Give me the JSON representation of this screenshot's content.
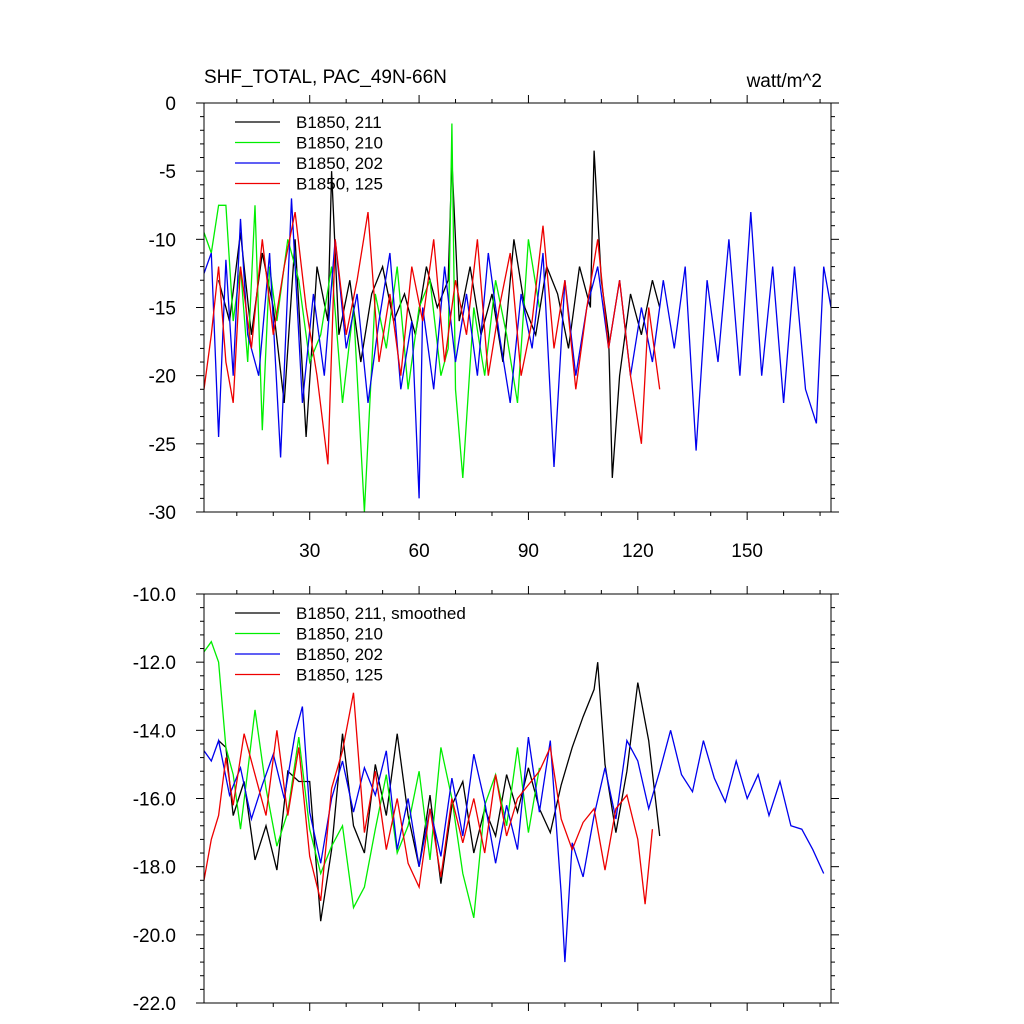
{
  "figure": {
    "title": "SHF_TOTAL, PAC_49N-66N",
    "units": "watt/m^2"
  },
  "chart_data": [
    {
      "type": "line",
      "title": "SHF_TOTAL, PAC_49N-66N",
      "units_label": "watt/m^2",
      "xlabel": "",
      "ylabel": "",
      "xlim": [
        1,
        173
      ],
      "ylim": [
        -30,
        0
      ],
      "xticks": [
        30,
        60,
        90,
        120,
        150
      ],
      "xtick_labels": [
        "30",
        "60",
        "90",
        "120",
        "150"
      ],
      "yticks": [
        0,
        -5,
        -10,
        -15,
        -20,
        -25,
        -30
      ],
      "ytick_labels": [
        "0",
        "-5",
        "-10",
        "-15",
        "-20",
        "-25",
        "-30"
      ],
      "legend_position": "top-left",
      "series": [
        {
          "name": "B1850, 211",
          "color": "#000000",
          "x": [
            5,
            8,
            11,
            14,
            17,
            20,
            23,
            26,
            29,
            32,
            35,
            36,
            38,
            41,
            44,
            47,
            50,
            53,
            56,
            59,
            62,
            65,
            68,
            69,
            71,
            74,
            77,
            80,
            83,
            86,
            89,
            92,
            95,
            98,
            101,
            104,
            107,
            108,
            110,
            112,
            113,
            115,
            118,
            121,
            124,
            126
          ],
          "values": [
            -13,
            -16,
            -9.5,
            -17,
            -11,
            -15,
            -22,
            -10,
            -24.5,
            -12,
            -16,
            -5,
            -17,
            -13,
            -19,
            -14,
            -12,
            -16,
            -14,
            -17,
            -12,
            -15,
            -13,
            -4.2,
            -16,
            -12,
            -17,
            -14,
            -19,
            -10,
            -15,
            -17,
            -12,
            -14,
            -18,
            -12,
            -15,
            -3.5,
            -13,
            -17,
            -27.5,
            -20,
            -14,
            -17,
            -13,
            -15
          ]
        },
        {
          "name": "B1850, 210",
          "color": "#00ee00",
          "x": [
            1,
            3,
            5,
            7,
            9,
            11,
            13,
            15,
            17,
            19,
            21,
            24,
            27,
            30,
            33,
            36,
            39,
            42,
            45,
            48,
            51,
            54,
            57,
            60,
            63,
            66,
            68,
            69,
            70,
            72,
            75,
            78,
            81,
            84,
            87,
            90,
            93
          ],
          "values": [
            -9.5,
            -11,
            -7.5,
            -7.5,
            -16,
            -12,
            -19,
            -7.5,
            -24,
            -12,
            -16,
            -10,
            -13,
            -19,
            -17,
            -12,
            -22,
            -15,
            -30,
            -14,
            -18,
            -12,
            -21,
            -15,
            -13,
            -20,
            -18,
            -1.5,
            -21,
            -27.5,
            -15,
            -20,
            -13,
            -17,
            -22,
            -10,
            -15
          ]
        },
        {
          "name": "B1850, 202",
          "color": "#0000ee",
          "x": [
            1,
            3,
            5,
            7,
            9,
            11,
            13,
            16,
            19,
            22,
            25,
            28,
            31,
            34,
            37,
            40,
            43,
            46,
            49,
            52,
            55,
            58,
            60,
            61,
            64,
            67,
            70,
            73,
            76,
            79,
            82,
            85,
            88,
            91,
            94,
            97,
            100,
            103,
            106,
            109,
            112,
            115,
            118,
            121,
            124,
            127,
            130,
            133,
            136,
            139,
            142,
            145,
            148,
            151,
            154,
            157,
            160,
            163,
            166,
            169,
            171,
            173
          ],
          "values": [
            -12.5,
            -11,
            -24.5,
            -11.5,
            -20,
            -8.5,
            -17,
            -20,
            -11,
            -26,
            -7,
            -22,
            -14,
            -20,
            -10,
            -18,
            -14,
            -22,
            -16,
            -11,
            -21,
            -16,
            -29,
            -15,
            -21,
            -12,
            -19,
            -14,
            -20,
            -11,
            -17,
            -22,
            -14,
            -18,
            -11,
            -26.7,
            -13,
            -20,
            -15,
            -12,
            -18,
            -13,
            -20,
            -15,
            -19,
            -13,
            -18,
            -12,
            -25.5,
            -13,
            -19,
            -10,
            -20,
            -8,
            -20,
            -12,
            -22,
            -12,
            -21,
            -23.5,
            -12,
            -15
          ]
        },
        {
          "name": "B1850, 125",
          "color": "#ee0000",
          "x": [
            1,
            3,
            5,
            7,
            9,
            11,
            14,
            17,
            20,
            23,
            26,
            29,
            32,
            35,
            37,
            40,
            43,
            46,
            49,
            52,
            55,
            58,
            61,
            64,
            67,
            70,
            73,
            76,
            79,
            82,
            85,
            88,
            91,
            94,
            97,
            100,
            103,
            106,
            109,
            112,
            115,
            118,
            121,
            123,
            126
          ],
          "values": [
            -21,
            -17,
            -12,
            -19,
            -22,
            -12,
            -18,
            -10,
            -17,
            -12,
            -8,
            -15,
            -20,
            -26.5,
            -10,
            -17,
            -13,
            -8,
            -19,
            -14,
            -20,
            -12,
            -16,
            -10,
            -19,
            -13,
            -17,
            -10,
            -20,
            -15,
            -11,
            -20,
            -16,
            -9,
            -18,
            -13,
            -21,
            -15,
            -10,
            -18,
            -13,
            -20,
            -25,
            -15,
            -21
          ]
        }
      ]
    },
    {
      "type": "line",
      "title": "",
      "xlabel": "",
      "ylabel": "",
      "xlim": [
        1,
        173
      ],
      "ylim": [
        -22,
        -10
      ],
      "xticks": [
        30,
        60,
        90,
        120,
        150
      ],
      "yticks": [
        -10,
        -12,
        -14,
        -16,
        -18,
        -20,
        -22
      ],
      "ytick_labels": [
        "-10.0",
        "-12.0",
        "-14.0",
        "-16.0",
        "-18.0",
        "-20.0",
        "-22.0"
      ],
      "legend_position": "top-left",
      "series": [
        {
          "name": "B1850, 211, smoothed",
          "color": "#000000",
          "x": [
            5,
            7,
            9,
            12,
            15,
            18,
            21,
            24,
            27,
            30,
            33,
            36,
            39,
            42,
            45,
            48,
            51,
            54,
            57,
            60,
            63,
            66,
            69,
            72,
            75,
            78,
            81,
            84,
            87,
            90,
            93,
            96,
            99,
            102,
            105,
            108,
            109,
            111,
            114,
            117,
            120,
            123,
            126
          ],
          "values": [
            -14.3,
            -14.5,
            -16.5,
            -15.5,
            -17.8,
            -16.8,
            -18.1,
            -15.2,
            -15.5,
            -15.5,
            -19.6,
            -17.5,
            -14.1,
            -16.8,
            -17.6,
            -15.0,
            -16.5,
            -14.1,
            -16.5,
            -18.0,
            -15.9,
            -18.5,
            -16.2,
            -15.5,
            -17.6,
            -16.3,
            -17.1,
            -15.3,
            -16.4,
            -15.1,
            -16.3,
            -17.0,
            -15.6,
            -14.5,
            -13.6,
            -12.8,
            -12.0,
            -15.0,
            -17.0,
            -15.2,
            -12.6,
            -14.3,
            -17.1
          ]
        },
        {
          "name": "B1850, 210",
          "color": "#00ee00",
          "x": [
            1,
            3,
            5,
            7,
            9,
            11,
            13,
            15,
            18,
            21,
            24,
            27,
            30,
            33,
            36,
            39,
            42,
            45,
            48,
            51,
            54,
            57,
            60,
            63,
            66,
            69,
            72,
            75,
            78,
            81,
            84,
            87,
            90,
            93
          ],
          "values": [
            -11.7,
            -11.4,
            -12.0,
            -14.5,
            -15.3,
            -16.9,
            -15.2,
            -13.4,
            -15.7,
            -17.4,
            -16.4,
            -14.2,
            -16.9,
            -18.2,
            -17.4,
            -16.8,
            -19.2,
            -18.6,
            -16.9,
            -15.3,
            -17.6,
            -16.8,
            -15.2,
            -17.8,
            -14.5,
            -16.0,
            -18.2,
            -19.5,
            -16.2,
            -15.3,
            -16.8,
            -14.5,
            -17.0,
            -15.1
          ]
        },
        {
          "name": "B1850, 202",
          "color": "#0000ee",
          "x": [
            1,
            3,
            5,
            8,
            11,
            14,
            17,
            20,
            23,
            26,
            28,
            30,
            33,
            36,
            39,
            42,
            45,
            48,
            51,
            54,
            57,
            60,
            63,
            66,
            69,
            72,
            75,
            78,
            81,
            84,
            87,
            90,
            93,
            96,
            99,
            100,
            102,
            105,
            108,
            111,
            114,
            117,
            120,
            123,
            126,
            129,
            132,
            135,
            138,
            141,
            144,
            147,
            150,
            153,
            156,
            159,
            162,
            165,
            168,
            171
          ],
          "values": [
            -14.6,
            -14.9,
            -14.3,
            -15.9,
            -15.1,
            -16.6,
            -15.6,
            -14.7,
            -16.0,
            -14.1,
            -13.3,
            -16.4,
            -17.9,
            -16.0,
            -14.9,
            -16.4,
            -15.1,
            -15.9,
            -14.6,
            -17.5,
            -16.0,
            -18.0,
            -16.3,
            -17.7,
            -15.4,
            -17.1,
            -14.7,
            -16.1,
            -17.9,
            -16.2,
            -17.5,
            -14.2,
            -16.4,
            -14.3,
            -18.8,
            -20.8,
            -17.3,
            -18.3,
            -16.5,
            -15.1,
            -16.6,
            -14.3,
            -14.9,
            -16.3,
            -15.2,
            -14.0,
            -15.3,
            -15.8,
            -14.3,
            -15.4,
            -16.1,
            -14.9,
            -16.0,
            -15.3,
            -16.5,
            -15.5,
            -16.8,
            -16.9,
            -17.5,
            -18.2
          ]
        },
        {
          "name": "B1850, 125",
          "color": "#ee0000",
          "x": [
            1,
            3,
            5,
            7,
            9,
            12,
            15,
            18,
            21,
            24,
            27,
            30,
            33,
            36,
            39,
            42,
            45,
            48,
            51,
            54,
            57,
            60,
            63,
            66,
            69,
            72,
            75,
            78,
            81,
            84,
            87,
            90,
            93,
            96,
            99,
            102,
            105,
            108,
            111,
            114,
            117,
            120,
            122,
            124
          ],
          "values": [
            -18.4,
            -17.2,
            -16.5,
            -14.8,
            -16.2,
            -14.1,
            -15.3,
            -16.5,
            -14.0,
            -16.5,
            -14.5,
            -17.7,
            -19.0,
            -15.7,
            -14.6,
            -12.9,
            -17.0,
            -15.2,
            -17.5,
            -16.0,
            -17.9,
            -18.6,
            -16.3,
            -18.3,
            -16.0,
            -17.3,
            -16.0,
            -17.6,
            -15.3,
            -17.1,
            -16.0,
            -15.6,
            -15.2,
            -14.5,
            -16.6,
            -17.5,
            -16.7,
            -16.3,
            -18.1,
            -16.3,
            -15.9,
            -17.2,
            -19.1,
            -16.9
          ]
        }
      ]
    }
  ]
}
